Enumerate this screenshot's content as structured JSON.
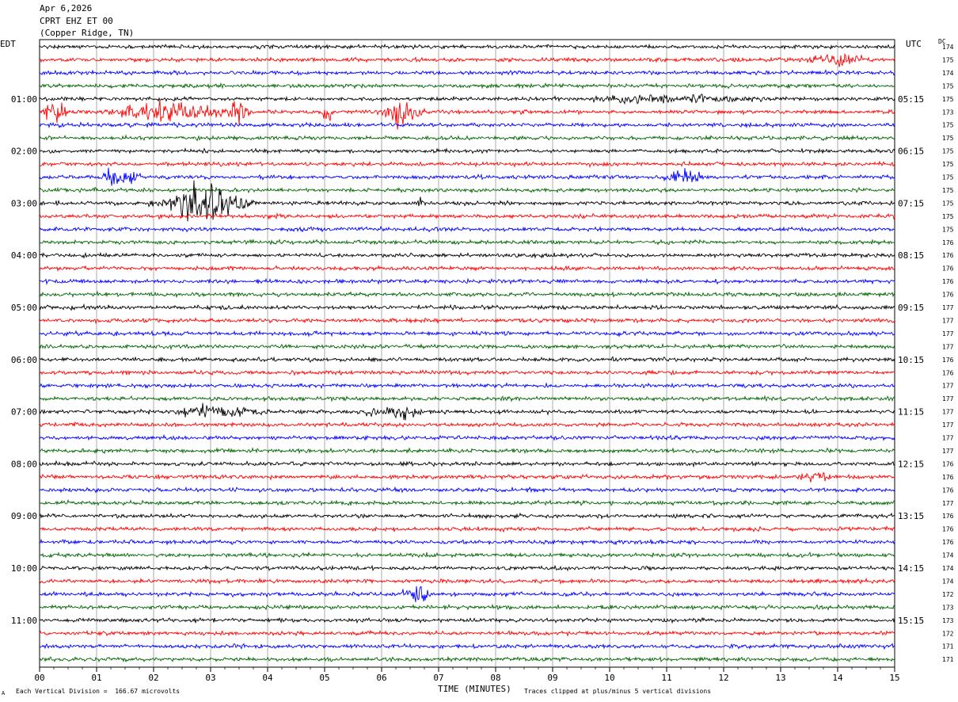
{
  "header": {
    "date": "Apr 6,2026",
    "station": "CPRT EHZ ET 00",
    "location": "(Copper Ridge, TN)"
  },
  "left_axis_title": "EDT",
  "right_axis_title": "UTC",
  "dc_label": "DC",
  "footer": {
    "xlabel": "TIME (MINUTES)",
    "scale_note": "Each Vertical Division =  166.67 microvolts",
    "clip_note": "Traces clipped at plus/minus 5 vertical divisions",
    "corner_mark": "A"
  },
  "colors": {
    "black": "#000000",
    "red": "#ff0000",
    "blue": "#0000ff",
    "green": "#006400",
    "grid": "#888888"
  },
  "chart_data": {
    "type": "line",
    "title": "CPRT EHZ ET 00",
    "xlabel": "TIME (MINUTES)",
    "x_ticks": [
      "00",
      "01",
      "02",
      "03",
      "04",
      "05",
      "06",
      "07",
      "08",
      "09",
      "10",
      "11",
      "12",
      "13",
      "14",
      "15"
    ],
    "xlim": [
      0,
      15
    ],
    "trace_minutes": 15,
    "trace_count": 48,
    "trace_color_cycle": [
      "black",
      "red",
      "blue",
      "green"
    ],
    "left_hour_labels": [
      "01:00",
      "02:00",
      "03:00",
      "04:00",
      "05:00",
      "06:00",
      "07:00",
      "08:00",
      "09:00",
      "10:00",
      "11:00"
    ],
    "right_hour_labels": [
      "05:15",
      "06:15",
      "07:15",
      "08:15",
      "09:15",
      "10:15",
      "11:15",
      "12:15",
      "13:15",
      "14:15",
      "15:15"
    ],
    "dc_offsets": [
      174,
      175,
      174,
      175,
      175,
      173,
      175,
      175,
      175,
      175,
      175,
      175,
      175,
      175,
      175,
      176,
      176,
      176,
      176,
      176,
      177,
      177,
      177,
      177,
      176,
      176,
      177,
      177,
      177,
      177,
      177,
      177,
      176,
      176,
      176,
      177,
      176,
      176,
      176,
      174,
      174,
      174,
      172,
      173,
      173,
      172,
      171,
      171
    ],
    "noise_amplitude": 2.2,
    "events": [
      {
        "trace": 1,
        "start": 13.1,
        "end": 14.9,
        "peak": 14.0,
        "amp": 9
      },
      {
        "trace": 3,
        "start": 6.2,
        "end": 6.3,
        "peak": 6.25,
        "amp": 5
      },
      {
        "trace": 4,
        "start": 9.3,
        "end": 15.0,
        "peak": 10.2,
        "amp": 6
      },
      {
        "trace": 4,
        "start": 11.5,
        "end": 11.8,
        "peak": 11.6,
        "amp": 9
      },
      {
        "trace": 5,
        "start": 0.0,
        "end": 0.6,
        "peak": 0.2,
        "amp": 16
      },
      {
        "trace": 5,
        "start": 0.8,
        "end": 3.8,
        "peak": 2.2,
        "amp": 14
      },
      {
        "trace": 5,
        "start": 3.0,
        "end": 3.8,
        "peak": 3.4,
        "amp": 16
      },
      {
        "trace": 5,
        "start": 4.9,
        "end": 5.2,
        "peak": 5.05,
        "amp": 11
      },
      {
        "trace": 5,
        "start": 5.9,
        "end": 6.8,
        "peak": 6.3,
        "amp": 22
      },
      {
        "trace": 10,
        "start": 1.0,
        "end": 1.7,
        "peak": 1.3,
        "amp": 12
      },
      {
        "trace": 10,
        "start": 1.3,
        "end": 1.9,
        "peak": 1.6,
        "amp": 8
      },
      {
        "trace": 10,
        "start": 10.8,
        "end": 11.8,
        "peak": 11.3,
        "amp": 12
      },
      {
        "trace": 12,
        "start": 1.9,
        "end": 3.8,
        "peak": 3.0,
        "amp": 30
      },
      {
        "trace": 12,
        "start": 4.9,
        "end": 6.2,
        "peak": 5.2,
        "amp": 3
      },
      {
        "trace": 12,
        "start": 6.6,
        "end": 6.8,
        "peak": 6.7,
        "amp": 10
      },
      {
        "trace": 13,
        "start": 1.2,
        "end": 1.6,
        "peak": 1.4,
        "amp": 5
      },
      {
        "trace": 26,
        "start": 9.8,
        "end": 10.0,
        "peak": 9.9,
        "amp": 4
      },
      {
        "trace": 26,
        "start": 10.8,
        "end": 11.2,
        "peak": 11.0,
        "amp": 3
      },
      {
        "trace": 28,
        "start": 2.2,
        "end": 4.7,
        "peak": 2.8,
        "amp": 9
      },
      {
        "trace": 28,
        "start": 5.2,
        "end": 6.9,
        "peak": 6.4,
        "amp": 10
      },
      {
        "trace": 33,
        "start": 13.0,
        "end": 14.0,
        "peak": 13.7,
        "amp": 8
      },
      {
        "trace": 36,
        "start": 14.6,
        "end": 14.8,
        "peak": 14.7,
        "amp": 5
      },
      {
        "trace": 37,
        "start": 4.2,
        "end": 4.4,
        "peak": 4.3,
        "amp": 4
      },
      {
        "trace": 41,
        "start": 3.0,
        "end": 3.3,
        "peak": 3.1,
        "amp": 4
      },
      {
        "trace": 42,
        "start": 6.2,
        "end": 6.9,
        "peak": 6.7,
        "amp": 13
      },
      {
        "trace": 44,
        "start": 9.7,
        "end": 9.9,
        "peak": 9.8,
        "amp": 4
      },
      {
        "trace": 45,
        "start": 5.7,
        "end": 5.9,
        "peak": 5.8,
        "amp": 5
      }
    ]
  }
}
